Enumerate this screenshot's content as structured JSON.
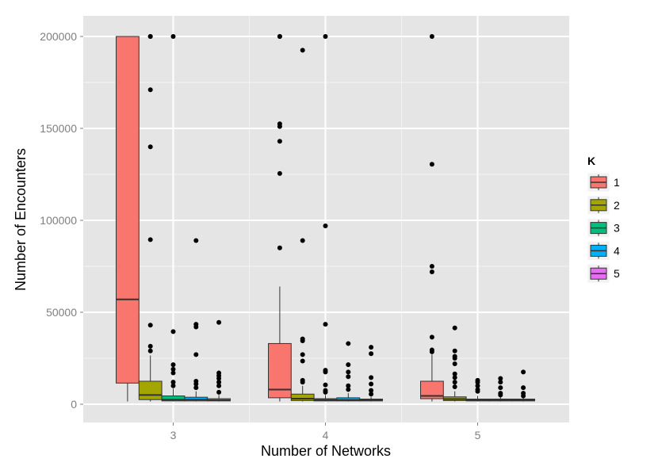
{
  "chart_data": {
    "type": "boxplot",
    "xlabel": "Number of Networks",
    "ylabel": "Number of Encounters",
    "categories": [
      "3",
      "4",
      "5"
    ],
    "ylim": [
      -10000,
      210000
    ],
    "yticks": [
      0,
      50000,
      100000,
      150000,
      200000
    ],
    "ytick_labels": [
      "0",
      "50000",
      "100000",
      "150000",
      "200000"
    ],
    "grid": true,
    "legend": {
      "title": "K",
      "position": "right",
      "entries": [
        "1",
        "2",
        "3",
        "4",
        "5"
      ]
    },
    "colors": {
      "1": "#F8766D",
      "2": "#A3A500",
      "3": "#00BF7D",
      "4": "#00B0F6",
      "5": "#E76BF3",
      "panel": "#E5E5E5",
      "grid": "#FFFFFF",
      "outline": "#333333"
    },
    "series": [
      {
        "name": "1",
        "boxes": [
          {
            "category": "3",
            "whisker_low": 1500,
            "q1": 11500,
            "median": 57000,
            "q3": 200000,
            "whisker_high": 200000,
            "outliers": []
          },
          {
            "category": "4",
            "whisker_low": 1500,
            "q1": 3500,
            "median": 8000,
            "q3": 33000,
            "whisker_high": 64000,
            "outliers": [
              85000,
              125500,
              143000,
              151000,
              152500,
              200000,
              200000
            ]
          },
          {
            "category": "5",
            "whisker_low": 1500,
            "q1": 3000,
            "median": 4500,
            "q3": 12500,
            "whisker_high": 27000,
            "outliers": [
              28500,
              29500,
              36500,
              72000,
              75000,
              130500,
              200000
            ]
          }
        ]
      },
      {
        "name": "2",
        "boxes": [
          {
            "category": "3",
            "whisker_low": 1500,
            "q1": 2500,
            "median": 5000,
            "q3": 12500,
            "whisker_high": 26500,
            "outliers": [
              29000,
              31500,
              43000,
              89500,
              140000,
              171000,
              200000,
              200000
            ]
          },
          {
            "category": "4",
            "whisker_low": 1500,
            "q1": 2000,
            "median": 3000,
            "q3": 5500,
            "whisker_high": 10000,
            "outliers": [
              12000,
              13000,
              23500,
              27000,
              34500,
              35500,
              89000,
              192500
            ]
          },
          {
            "category": "5",
            "whisker_low": 1500,
            "q1": 2000,
            "median": 2800,
            "q3": 4000,
            "whisker_high": 7000,
            "outliers": [
              9500,
              12000,
              14500,
              16500,
              22000,
              25000,
              26000,
              29000,
              41500
            ]
          }
        ]
      },
      {
        "name": "3",
        "boxes": [
          {
            "category": "3",
            "whisker_low": 1500,
            "q1": 1800,
            "median": 2500,
            "q3": 4500,
            "whisker_high": 8500,
            "outliers": [
              10000,
              12000,
              17000,
              19000,
              21500,
              39500,
              200000
            ]
          },
          {
            "category": "4",
            "whisker_low": 1500,
            "q1": 1800,
            "median": 2300,
            "q3": 3000,
            "whisker_high": 5000,
            "outliers": [
              6500,
              7500,
              10500,
              17500,
              18500,
              43500,
              97000,
              200000
            ]
          },
          {
            "category": "5",
            "whisker_low": 1500,
            "q1": 1800,
            "median": 2200,
            "q3": 2800,
            "whisker_high": 4500,
            "outliers": [
              7000,
              8000,
              10000,
              12000,
              13000
            ]
          }
        ]
      },
      {
        "name": "4",
        "boxes": [
          {
            "category": "3",
            "whisker_low": 1500,
            "q1": 1800,
            "median": 2500,
            "q3": 3800,
            "whisker_high": 7000,
            "outliers": [
              9000,
              11000,
              12500,
              27000,
              42000,
              43500,
              89000
            ]
          },
          {
            "category": "4",
            "whisker_low": 1500,
            "q1": 1800,
            "median": 2300,
            "q3": 3500,
            "whisker_high": 6000,
            "outliers": [
              8000,
              10000,
              15000,
              17500,
              21500,
              33000
            ]
          },
          {
            "category": "5",
            "whisker_low": 1500,
            "q1": 1800,
            "median": 2200,
            "q3": 2800,
            "whisker_high": 4000,
            "outliers": [
              5000,
              6000,
              9000,
              12000,
              14000
            ]
          }
        ]
      },
      {
        "name": "5",
        "boxes": [
          {
            "category": "3",
            "whisker_low": 1500,
            "q1": 1800,
            "median": 2200,
            "q3": 3000,
            "whisker_high": 5000,
            "outliers": [
              6500,
              10000,
              12000,
              14000,
              15500,
              17000,
              44500
            ]
          },
          {
            "category": "4",
            "whisker_low": 1500,
            "q1": 1800,
            "median": 2200,
            "q3": 2800,
            "whisker_high": 4000,
            "outliers": [
              5500,
              7500,
              11000,
              14500,
              27500,
              31000
            ]
          },
          {
            "category": "5",
            "whisker_low": 1500,
            "q1": 1800,
            "median": 2200,
            "q3": 2800,
            "whisker_high": 4000,
            "outliers": [
              4500,
              6000,
              9000,
              17500
            ]
          }
        ]
      }
    ]
  }
}
